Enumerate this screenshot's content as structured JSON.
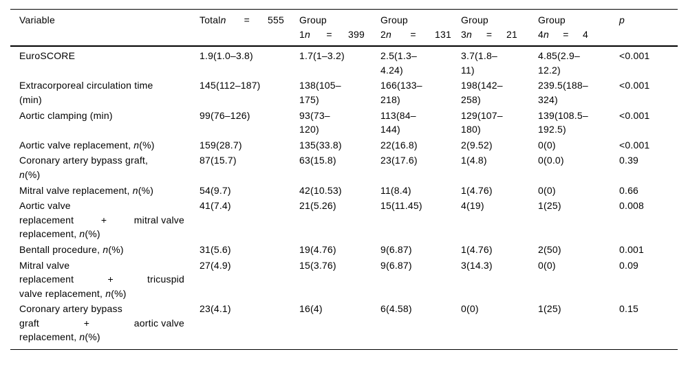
{
  "page": {
    "background": "#ffffff",
    "text_color": "#000000"
  },
  "table": {
    "header": {
      "cells": [
        {
          "name": "variable",
          "lines": [
            [
              [
                "Variable"
              ]
            ]
          ]
        },
        {
          "name": "total",
          "lines": [
            [
              [
                "Total",
                {
                  "i": "n"
                }
              ],
              [
                "="
              ],
              [
                "555"
              ]
            ]
          ]
        },
        {
          "name": "group1",
          "lines": [
            [
              [
                "Group"
              ]
            ],
            [
              [
                "1",
                {
                  "i": "n"
                }
              ],
              [
                "="
              ],
              [
                "399"
              ]
            ]
          ]
        },
        {
          "name": "group2",
          "lines": [
            [
              [
                "Group"
              ]
            ],
            [
              [
                "2",
                {
                  "i": "n"
                }
              ],
              [
                "="
              ],
              [
                "131"
              ]
            ]
          ]
        },
        {
          "name": "group3",
          "lines": [
            [
              [
                "Group"
              ]
            ],
            [
              [
                "3",
                {
                  "i": "n"
                }
              ],
              [
                "="
              ],
              [
                "21"
              ]
            ]
          ]
        },
        {
          "name": "group4",
          "lines": [
            [
              [
                "Group"
              ]
            ],
            [
              [
                "4",
                {
                  "i": "n"
                }
              ],
              [
                "="
              ],
              [
                "4"
              ]
            ]
          ]
        },
        {
          "name": "p",
          "lines": [
            [
              [
                {
                  "i": "p"
                }
              ]
            ]
          ]
        }
      ]
    },
    "rows": [
      {
        "variable": [
          [
            [
              "EuroSCORE"
            ]
          ]
        ],
        "values": [
          "1.9(1.0–3.8)",
          "1.7(1–3.2)",
          "2.5(1.3–\n4.24)",
          "3.7(1.8–\n11)",
          "4.85(2.9–\n12.2)",
          "<0.001"
        ]
      },
      {
        "variable": [
          [
            [
              "Extracorporeal circulation time"
            ]
          ],
          [
            [
              "(min)"
            ]
          ]
        ],
        "values": [
          "145(112–187)",
          "138(105–\n175)",
          "166(133–\n218)",
          "198(142–\n258)",
          "239.5(188–\n324)",
          "<0.001"
        ]
      },
      {
        "variable": [
          [
            [
              "Aortic clamping (min)"
            ]
          ]
        ],
        "values": [
          "99(76–126)",
          "93(73–\n120)",
          "113(84–\n144)",
          "129(107–\n180)",
          "139(108.5–\n192.5)",
          "<0.001"
        ]
      },
      {
        "variable": [
          [
            [
              "Aortic valve replacement, ",
              {
                "i": "n"
              },
              "(%)"
            ]
          ]
        ],
        "values": [
          "159(28.7)",
          "135(33.8)",
          "22(16.8)",
          "2(9.52)",
          "0(0)",
          "<0.001"
        ]
      },
      {
        "variable": [
          [
            [
              "Coronary artery bypass graft,"
            ]
          ],
          [
            [
              {
                "i": "n"
              },
              "(%)"
            ]
          ]
        ],
        "values": [
          "87(15.7)",
          "63(15.8)",
          "23(17.6)",
          "1(4.8)",
          "0(0.0)",
          "0.39"
        ]
      },
      {
        "variable": [
          [
            [
              "Mitral valve replacement, ",
              {
                "i": "n"
              },
              "(%)"
            ]
          ]
        ],
        "values": [
          "54(9.7)",
          "42(10.53)",
          "11(8.4)",
          "1(4.76)",
          "0(0)",
          "0.66"
        ]
      },
      {
        "variable": [
          [
            [
              "Aortic valve"
            ]
          ],
          [
            [
              "replacement"
            ],
            [
              "+"
            ],
            [
              "mitral valve"
            ]
          ],
          [
            [
              "replacement, ",
              {
                "i": "n"
              },
              "(%)"
            ]
          ]
        ],
        "values": [
          "41(7.4)",
          "21(5.26)",
          "15(11.45)",
          "4(19)",
          "1(25)",
          "0.008"
        ]
      },
      {
        "variable": [
          [
            [
              "Bentall procedure, ",
              {
                "i": "n"
              },
              "(%)"
            ]
          ]
        ],
        "values": [
          "31(5.6)",
          "19(4.76)",
          "9(6.87)",
          "1(4.76)",
          "2(50)",
          "0.001"
        ]
      },
      {
        "variable": [
          [
            [
              "Mitral valve"
            ]
          ],
          [
            [
              "replacement"
            ],
            [
              "+"
            ],
            [
              "tricuspid"
            ]
          ],
          [
            [
              "valve replacement, ",
              {
                "i": "n"
              },
              "(%)"
            ]
          ]
        ],
        "values": [
          "27(4.9)",
          "15(3.76)",
          "9(6.87)",
          "3(14.3)",
          "0(0)",
          "0.09"
        ]
      },
      {
        "variable": [
          [
            [
              "Coronary artery bypass"
            ]
          ],
          [
            [
              "graft"
            ],
            [
              "+"
            ],
            [
              "aortic valve"
            ]
          ],
          [
            [
              "replacement, ",
              {
                "i": "n"
              },
              "(%)"
            ]
          ]
        ],
        "values": [
          "23(4.1)",
          "16(4)",
          "6(4.58)",
          "0(0)",
          "1(25)",
          "0.15"
        ]
      }
    ]
  }
}
